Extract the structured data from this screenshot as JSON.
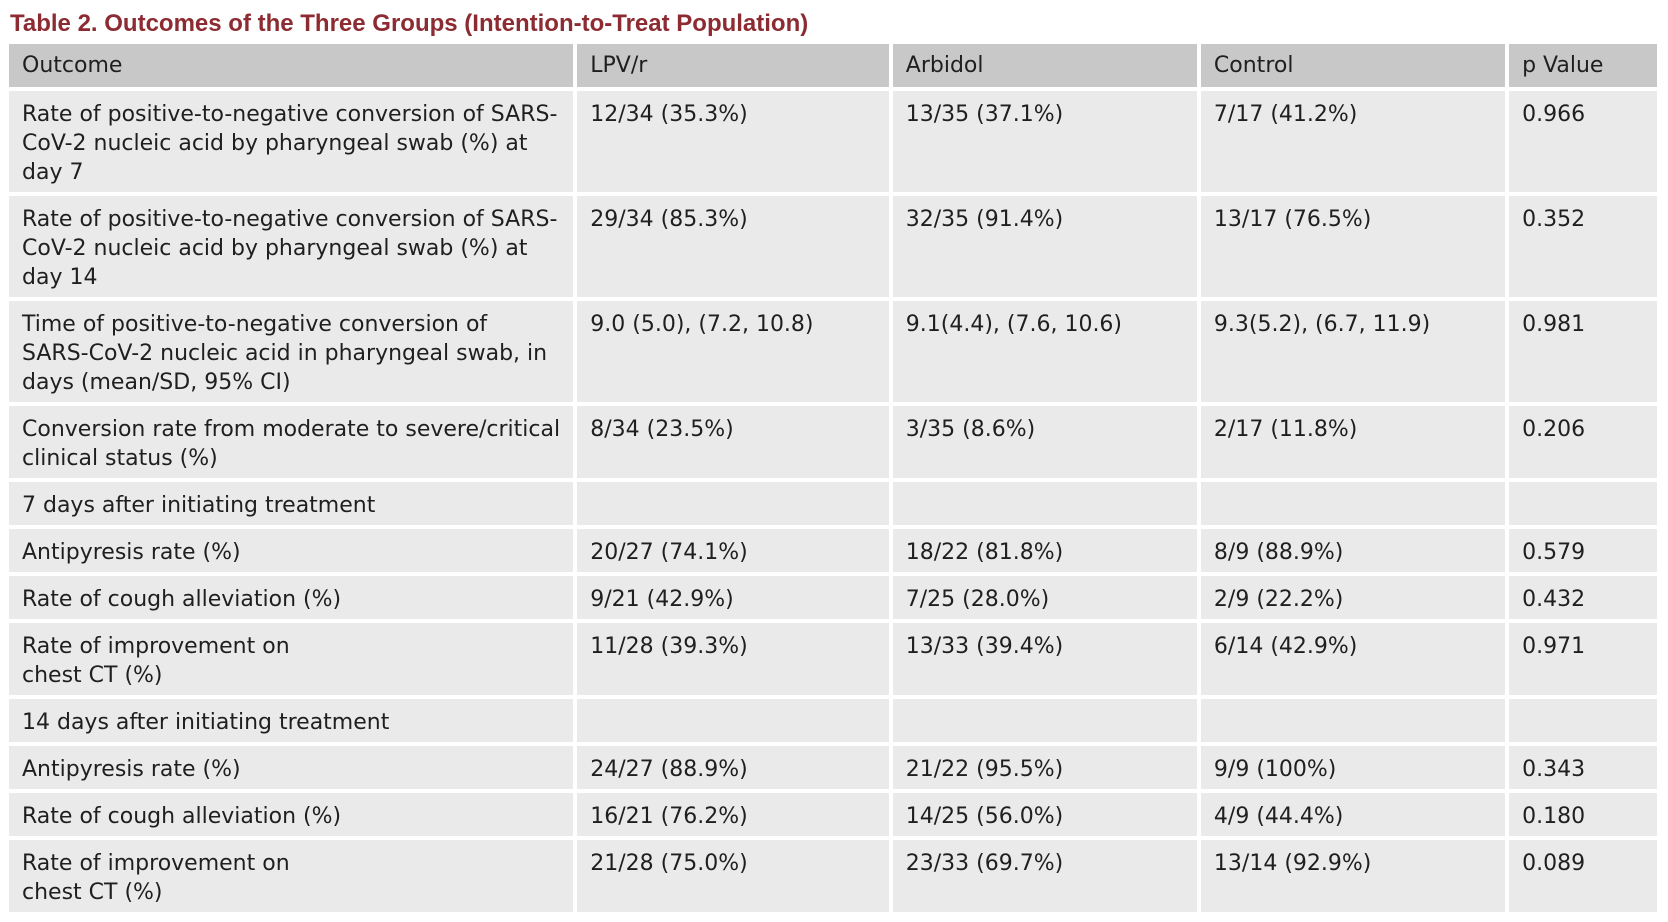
{
  "table": {
    "title": "Table 2.  Outcomes of the Three Groups (Intention-to-Treat Population)",
    "headers": [
      "Outcome",
      "LPV/r",
      "Arbidol",
      "Control",
      "p Value"
    ],
    "rows": [
      {
        "outcome": "Rate of positive-to-negative conversion of SARS-CoV-2 nucleic acid by pharyngeal swab (%) at day 7",
        "lpvr": "12/34 (35.3%)",
        "arbidol": "13/35 (37.1%)",
        "control": "7/17 (41.2%)",
        "p": "0.966"
      },
      {
        "outcome": "Rate of positive-to-negative conversion of SARS-CoV-2 nucleic acid by pharyngeal swab (%) at day 14",
        "lpvr": "29/34 (85.3%)",
        "arbidol": "32/35 (91.4%)",
        "control": "13/17 (76.5%)",
        "p": "0.352"
      },
      {
        "outcome": "Time of positive-to-negative conversion of SARS-CoV-2 nucleic acid in pharyngeal swab, in days (mean/SD, 95% CI)",
        "lpvr": "9.0 (5.0), (7.2, 10.8)",
        "arbidol": "9.1(4.4), (7.6, 10.6)",
        "control": "9.3(5.2), (6.7, 11.9)",
        "p": "0.981"
      },
      {
        "outcome": "Conversion rate from moderate to severe/critical clinical status (%)",
        "lpvr": "8/34 (23.5%)",
        "arbidol": "3/35 (8.6%)",
        "control": "2/17 (11.8%)",
        "p": "0.206"
      },
      {
        "outcome": "7 days after initiating treatment",
        "lpvr": "",
        "arbidol": "",
        "control": "",
        "p": ""
      },
      {
        "outcome": "Antipyresis rate (%)",
        "lpvr": "20/27 (74.1%)",
        "arbidol": "18/22 (81.8%)",
        "control": "8/9 (88.9%)",
        "p": "0.579"
      },
      {
        "outcome": "Rate of cough alleviation (%)",
        "lpvr": "9/21 (42.9%)",
        "arbidol": "7/25 (28.0%)",
        "control": "2/9 (22.2%)",
        "p": "0.432"
      },
      {
        "outcome": "Rate of improvement on chest CT (%)",
        "lpvr": "11/28 (39.3%)",
        "arbidol": "13/33 (39.4%)",
        "control": "6/14 (42.9%)",
        "p": "0.971"
      },
      {
        "outcome": "14 days after initiating treatment",
        "lpvr": "",
        "arbidol": "",
        "control": "",
        "p": ""
      },
      {
        "outcome": "Antipyresis rate (%)",
        "lpvr": "24/27 (88.9%)",
        "arbidol": "21/22 (95.5%)",
        "control": "9/9 (100%)",
        "p": "0.343"
      },
      {
        "outcome": "Rate of cough alleviation (%)",
        "lpvr": "16/21 (76.2%)",
        "arbidol": "14/25 (56.0%)",
        "control": "4/9 (44.4%)",
        "p": "0.180"
      },
      {
        "outcome": "Rate of improvement on chest CT (%)",
        "lpvr": "21/28 (75.0%)",
        "arbidol": "23/33 (69.7%)",
        "control": "13/14 (92.9%)",
        "p": "0.089"
      }
    ]
  },
  "colors": {
    "title": "#8c2b31",
    "header_fill": "#c8c8c8",
    "cell_fill": "#eaeaea"
  }
}
